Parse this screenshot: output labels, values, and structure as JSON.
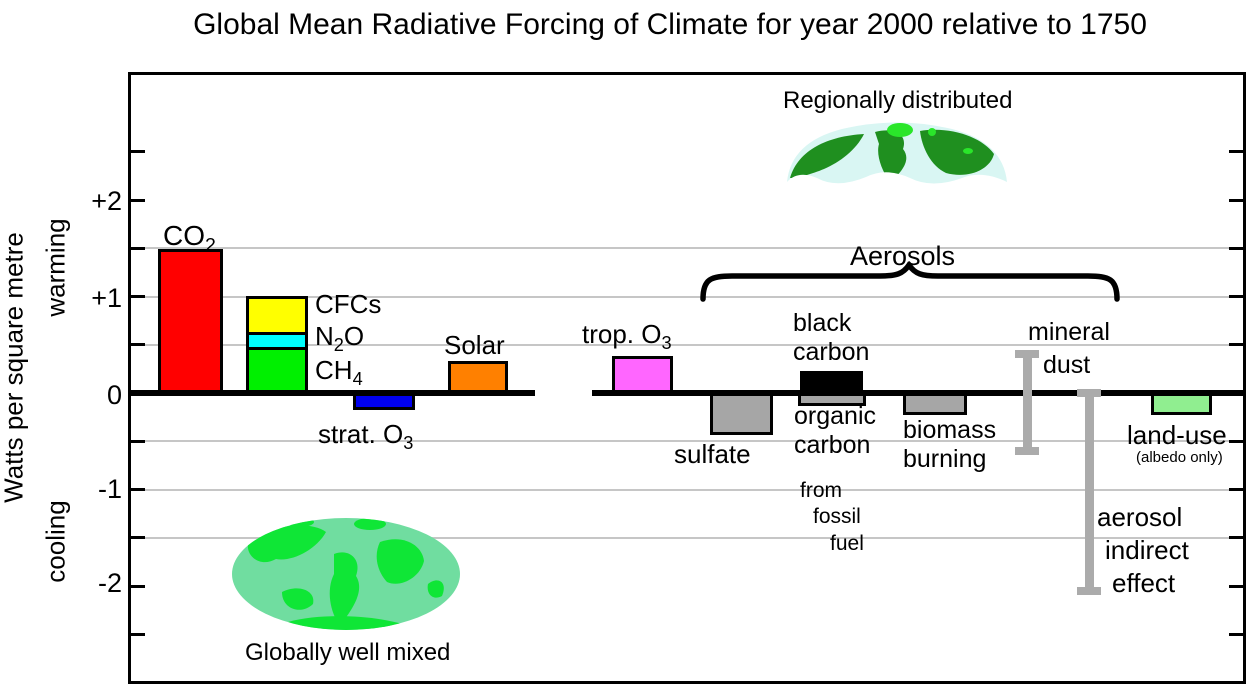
{
  "title": "Global Mean Radiative Forcing of Climate for year 2000 relative to 1750",
  "y_axis": {
    "label": "Watts per square metre",
    "warming": "warming",
    "cooling": "cooling",
    "tick_labels": [
      "+2",
      "+1",
      "0",
      "-1",
      "-2"
    ]
  },
  "annotations": {
    "regionally_distributed": "Regionally distributed",
    "globally_well_mixed": "Globally well mixed",
    "aerosols": "Aerosols"
  },
  "labels": {
    "co2": [
      "CO",
      "2"
    ],
    "cfcs": "CFCs",
    "n2o": [
      "N",
      "2",
      "O"
    ],
    "ch4": [
      "CH",
      "4"
    ],
    "strat_o3": [
      "strat. O",
      "3"
    ],
    "solar": "Solar",
    "trop_o3": [
      "trop. O",
      "3"
    ],
    "sulfate": "sulfate",
    "black": "black",
    "carbon": "carbon",
    "organic": "organic",
    "from": "from",
    "fossil": "fossil",
    "fuel": "fuel",
    "biomass": "biomass",
    "burning": "burning",
    "mineral": "mineral",
    "dust": "dust",
    "land_use": "land-use",
    "albedo_only": "(albedo only)",
    "aerosol": "aerosol",
    "indirect": "indirect",
    "effect": "effect"
  },
  "colors": {
    "co2": "#FF0000",
    "cfcs": "#FFFF00",
    "n2o": "#00FFFF",
    "ch4": "#00F000",
    "strat_o3": "#0000EE",
    "solar": "#FF8000",
    "trop_o3": "#FF66FF",
    "gray_aerosol": "#A6A6A6",
    "black_carbon": "#000000",
    "land_use": "#90EE90",
    "errorbar": "#ABABAB",
    "gridline": "#C6C6C6"
  },
  "chart_data": {
    "type": "bar",
    "title": "Global Mean Radiative Forcing of Climate for year 2000 relative to 1750",
    "ylabel": "Watts per square metre",
    "ylim": [
      -3.0,
      3.33
    ],
    "grid": "horizontal at every 0.5 from -1.5 to +1.5, zero line thick black",
    "gridlines": [
      1.5,
      1.0,
      0.5,
      -0.5,
      -1.0,
      -1.5
    ],
    "tick_step": 0.5,
    "items": [
      {
        "id": "co2",
        "label": "CO2",
        "value": 1.46,
        "color": "#FF0000"
      },
      {
        "id": "ghg-stack",
        "label": "CH4 + N2O + CFCs",
        "stacked": true,
        "segments": [
          {
            "label": "CH4",
            "value": 0.48,
            "color": "#00F000"
          },
          {
            "label": "N2O",
            "value": 0.15,
            "color": "#00FFFF"
          },
          {
            "label": "CFCs",
            "value": 0.34,
            "color": "#FFFF00"
          }
        ]
      },
      {
        "id": "strat-o3",
        "label": "strat. O3",
        "value": -0.15,
        "color": "#0000EE"
      },
      {
        "id": "solar",
        "label": "Solar",
        "value": 0.3,
        "color": "#FF8000"
      },
      {
        "id": "trop-o3",
        "label": "trop. O3",
        "value": 0.35,
        "color": "#FF66FF"
      },
      {
        "id": "sulfate",
        "label": "sulfate",
        "value": -0.4,
        "color": "#A6A6A6"
      },
      {
        "id": "organic-carbon",
        "label": "organic carbon from fossil fuel",
        "value": -0.1,
        "color": "#A6A6A6"
      },
      {
        "id": "black-carbon",
        "label": "black carbon",
        "value": 0.2,
        "color": "#000000"
      },
      {
        "id": "biomass-burning",
        "label": "biomass burning",
        "value": -0.2,
        "color": "#A6A6A6"
      },
      {
        "id": "mineral-dust",
        "label": "mineral dust",
        "style": "errorbar",
        "range": [
          -0.6,
          0.4
        ],
        "color": "#ABABAB"
      },
      {
        "id": "aerosol-indirect",
        "label": "aerosol indirect effect",
        "style": "errorbar",
        "range": [
          -2.05,
          0.0
        ],
        "color": "#ABABAB"
      },
      {
        "id": "land-use",
        "label": "land-use (albedo only)",
        "value": -0.2,
        "color": "#90EE90"
      }
    ],
    "groups": {
      "aerosols_brace_over": [
        "sulfate",
        "black-carbon",
        "organic-carbon",
        "biomass-burning",
        "mineral-dust"
      ],
      "globally_well_mixed": [
        "co2",
        "ghg-stack"
      ],
      "regionally_distributed": [
        "trop-o3",
        "aerosols"
      ]
    }
  }
}
